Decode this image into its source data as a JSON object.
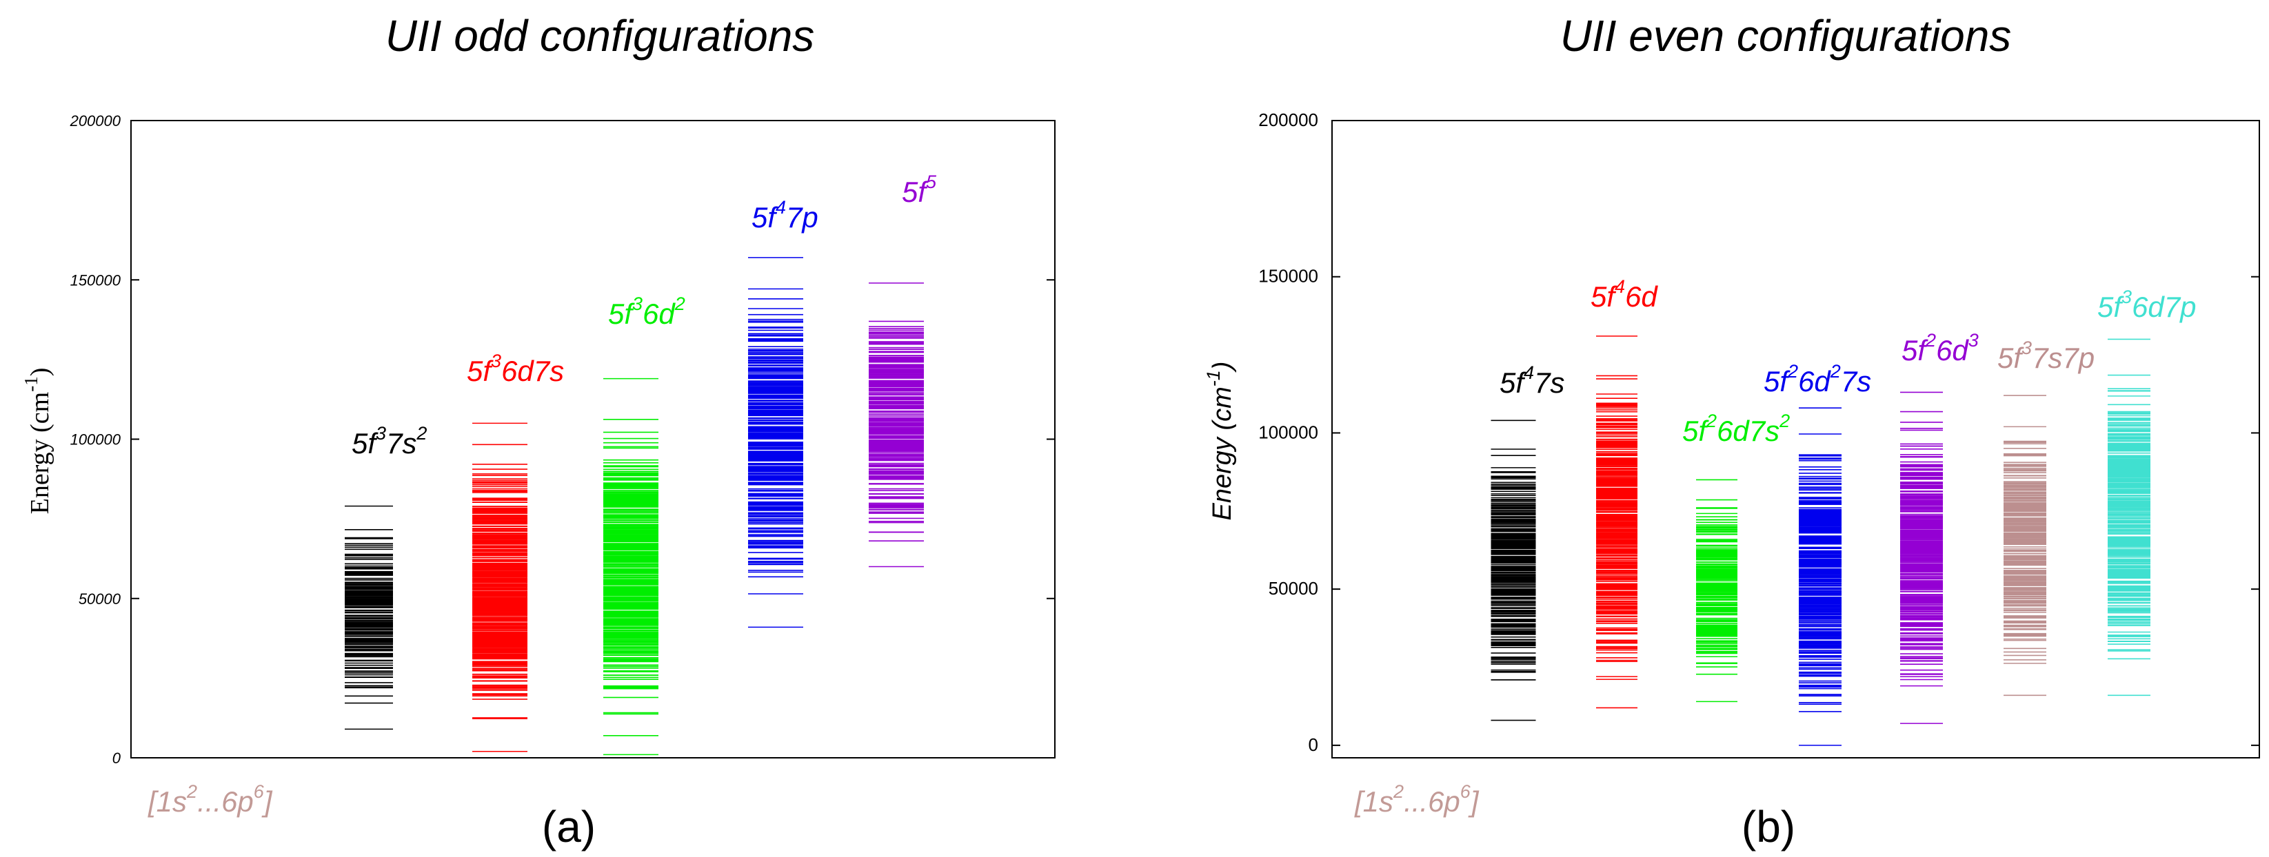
{
  "chart_data": [
    {
      "id": "a",
      "type": "level-diagram",
      "title": "UII odd configurations",
      "ylabel": "Energy (cm-1)",
      "ylabel_main": "Energy (cm",
      "ylabel_sup": "-1",
      "ylabel_close": ")",
      "ylim": [
        0,
        200000
      ],
      "yticks": [
        0,
        50000,
        100000,
        150000,
        200000
      ],
      "ytick_labels": [
        "0",
        "50000",
        "100000",
        "150000",
        "200000"
      ],
      "panel_label": "(a)",
      "core_label": {
        "parts": [
          "[1s",
          "2",
          "...6p",
          "6",
          "]"
        ]
      },
      "configurations": [
        {
          "name": "5f3 7s2",
          "parts": [
            "5f",
            "3",
            "7s",
            "2"
          ],
          "color": "#000000",
          "min": 9000,
          "max": 79000,
          "density": 0.35
        },
        {
          "name": "5f3 6d7s",
          "parts": [
            "5f",
            "3",
            "6d7s"
          ],
          "color": "#ff0000",
          "min": 2000,
          "max": 105000,
          "density": 0.95
        },
        {
          "name": "5f3 6d2",
          "parts": [
            "5f",
            "3",
            "6d",
            "2"
          ],
          "color": "#00ee00",
          "min": 1000,
          "max": 119000,
          "density": 0.95
        },
        {
          "name": "5f4 7p",
          "parts": [
            "5f",
            "4",
            "7p"
          ],
          "color": "#0000ee",
          "min": 41000,
          "max": 157000,
          "density": 0.85
        },
        {
          "name": "5f5",
          "parts": [
            "5f",
            "5"
          ],
          "color": "#9400d3",
          "min": 60000,
          "max": 149000,
          "density": 0.6
        }
      ]
    },
    {
      "id": "b",
      "type": "level-diagram",
      "title": "UII even configurations",
      "ylabel": "Energy (cm-1)",
      "ylabel_main": "Energy (cm",
      "ylabel_sup": "-1",
      "ylabel_close": ")",
      "ylim": [
        -4000,
        200000
      ],
      "yticks": [
        0,
        50000,
        100000,
        150000,
        200000
      ],
      "ytick_labels": [
        "0",
        "50000",
        "100000",
        "150000",
        "200000"
      ],
      "panel_label": "(b)",
      "core_label": {
        "parts": [
          "[1s",
          "2",
          "...6p",
          "6",
          "]"
        ]
      },
      "configurations": [
        {
          "name": "5f4 7s",
          "parts": [
            "5f",
            "4",
            "7s"
          ],
          "color": "#000000",
          "min": 8000,
          "max": 104000,
          "density": 0.6
        },
        {
          "name": "5f4 6d",
          "parts": [
            "5f",
            "4",
            "6d"
          ],
          "color": "#ff0000",
          "min": 12000,
          "max": 131000,
          "density": 0.9
        },
        {
          "name": "5f2 6d7s2",
          "parts": [
            "5f",
            "2",
            "6d7s",
            "2"
          ],
          "color": "#00ee00",
          "min": 14000,
          "max": 85000,
          "density": 0.45
        },
        {
          "name": "5f2 6d2 7s",
          "parts": [
            "5f",
            "2",
            "6d",
            "2",
            "7s"
          ],
          "color": "#0000ee",
          "min": 0,
          "max": 108000,
          "density": 0.9
        },
        {
          "name": "5f2 6d3",
          "parts": [
            "5f",
            "2",
            "6d",
            "3"
          ],
          "color": "#9400d3",
          "min": 7000,
          "max": 113000,
          "density": 0.85
        },
        {
          "name": "5f3 7s7p",
          "parts": [
            "5f",
            "3",
            "7s7p"
          ],
          "color": "#bc8f8f",
          "min": 16000,
          "max": 112000,
          "density": 0.6
        },
        {
          "name": "5f3 6d7p",
          "parts": [
            "5f",
            "3",
            "6d7p"
          ],
          "color": "#40e0d0",
          "min": 16000,
          "max": 130000,
          "density": 0.95
        }
      ]
    }
  ]
}
